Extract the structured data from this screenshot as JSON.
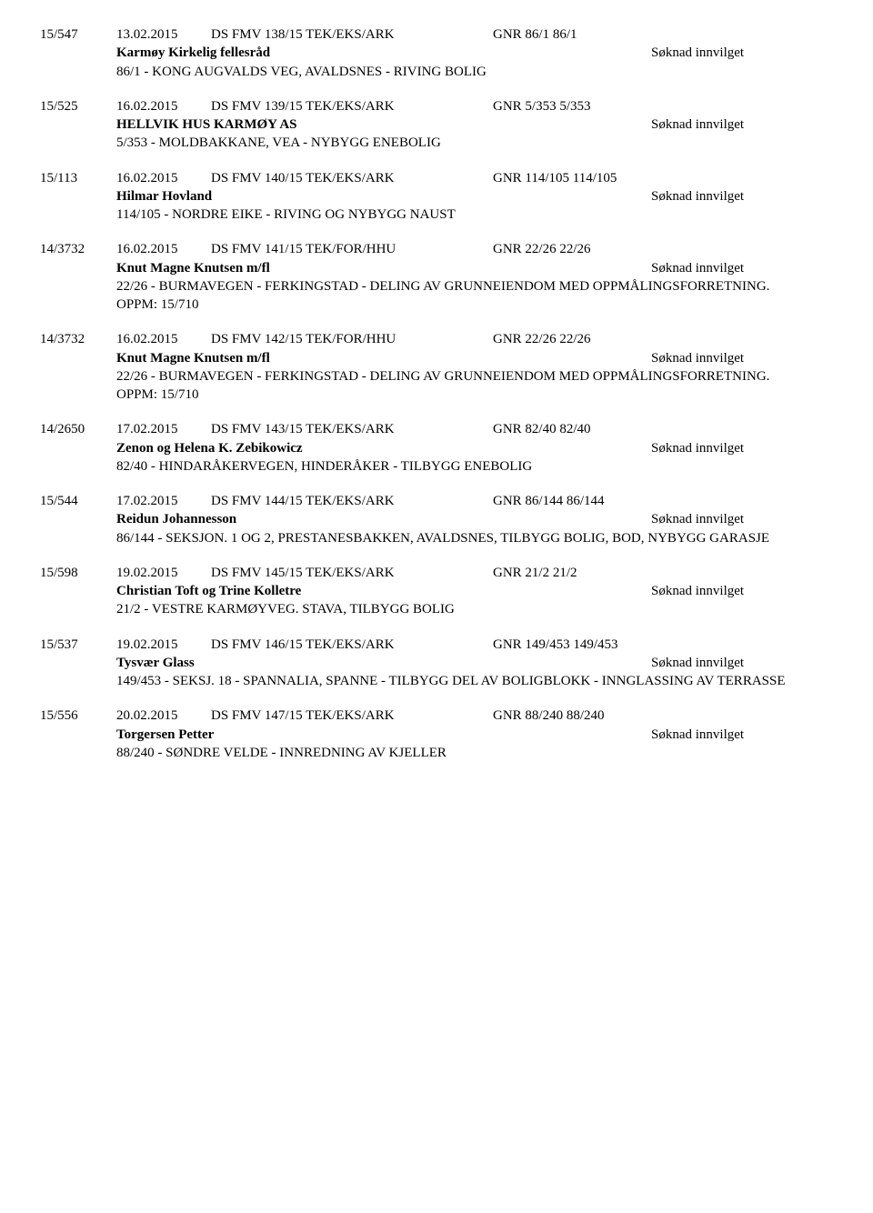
{
  "entries": [
    {
      "case_no": "15/547",
      "date": "13.02.2015",
      "doc_id": "DS FMV 138/15 TEK/EKS/ARK",
      "gnr_ref": "GNR 86/1 86/1",
      "applicant": "Karmøy Kirkelig fellesråd",
      "status": "Søknad innvilget",
      "desc": "86/1 - KONG AUGVALDS VEG, AVALDSNES - RIVING BOLIG"
    },
    {
      "case_no": "15/525",
      "date": "16.02.2015",
      "doc_id": "DS FMV 139/15 TEK/EKS/ARK",
      "gnr_ref": "GNR 5/353 5/353",
      "applicant": "HELLVIK HUS KARMØY AS",
      "status": "Søknad innvilget",
      "desc": "5/353 - MOLDBAKKANE, VEA - NYBYGG ENEBOLIG"
    },
    {
      "case_no": "15/113",
      "date": "16.02.2015",
      "doc_id": "DS FMV 140/15 TEK/EKS/ARK",
      "gnr_ref": "GNR 114/105 114/105",
      "applicant": "Hilmar Hovland",
      "status": "Søknad innvilget",
      "desc": "114/105 - NORDRE EIKE - RIVING OG NYBYGG NAUST"
    },
    {
      "case_no": "14/3732",
      "date": "16.02.2015",
      "doc_id": "DS FMV 141/15 TEK/FOR/HHU",
      "gnr_ref": "GNR 22/26 22/26",
      "applicant": "Knut Magne Knutsen m/fl",
      "status": "Søknad innvilget",
      "desc": "22/26 - BURMAVEGEN - FERKINGSTAD - DELING AV GRUNNEIENDOM MED OPPMÅLINGSFORRETNING. OPPM: 15/710"
    },
    {
      "case_no": "14/3732",
      "date": "16.02.2015",
      "doc_id": "DS FMV 142/15 TEK/FOR/HHU",
      "gnr_ref": "GNR 22/26 22/26",
      "applicant": "Knut Magne Knutsen m/fl",
      "status": "Søknad innvilget",
      "desc": "22/26 - BURMAVEGEN - FERKINGSTAD - DELING AV GRUNNEIENDOM MED OPPMÅLINGSFORRETNING. OPPM: 15/710"
    },
    {
      "case_no": "14/2650",
      "date": "17.02.2015",
      "doc_id": "DS FMV 143/15 TEK/EKS/ARK",
      "gnr_ref": "GNR 82/40 82/40",
      "applicant": "Zenon og Helena K. Zebikowicz",
      "status": "Søknad innvilget",
      "desc": "82/40 - HINDARÅKERVEGEN, HINDERÅKER - TILBYGG ENEBOLIG"
    },
    {
      "case_no": "15/544",
      "date": "17.02.2015",
      "doc_id": "DS FMV 144/15 TEK/EKS/ARK",
      "gnr_ref": "GNR 86/144 86/144",
      "applicant": "Reidun Johannesson",
      "status": "Søknad innvilget",
      "desc": "86/144 - SEKSJON. 1 OG 2, PRESTANESBAKKEN, AVALDSNES, TILBYGG BOLIG, BOD, NYBYGG GARASJE"
    },
    {
      "case_no": "15/598",
      "date": "19.02.2015",
      "doc_id": "DS FMV 145/15 TEK/EKS/ARK",
      "gnr_ref": "GNR 21/2 21/2",
      "applicant": "Christian Toft og Trine Kolletre",
      "status": "Søknad innvilget",
      "desc": "21/2 - VESTRE KARMØYVEG. STAVA, TILBYGG BOLIG"
    },
    {
      "case_no": "15/537",
      "date": "19.02.2015",
      "doc_id": "DS FMV 146/15 TEK/EKS/ARK",
      "gnr_ref": "GNR 149/453 149/453",
      "applicant": "Tysvær Glass",
      "status": "Søknad innvilget",
      "desc": "149/453 - SEKSJ. 18 - SPANNALIA, SPANNE - TILBYGG DEL AV BOLIGBLOKK - INNGLASSING AV TERRASSE"
    },
    {
      "case_no": "15/556",
      "date": "20.02.2015",
      "doc_id": "DS FMV 147/15 TEK/EKS/ARK",
      "gnr_ref": "GNR 88/240 88/240",
      "applicant": "Torgersen Petter",
      "status": "Søknad innvilget",
      "desc": "88/240 - SØNDRE VELDE - INNREDNING AV KJELLER"
    }
  ]
}
